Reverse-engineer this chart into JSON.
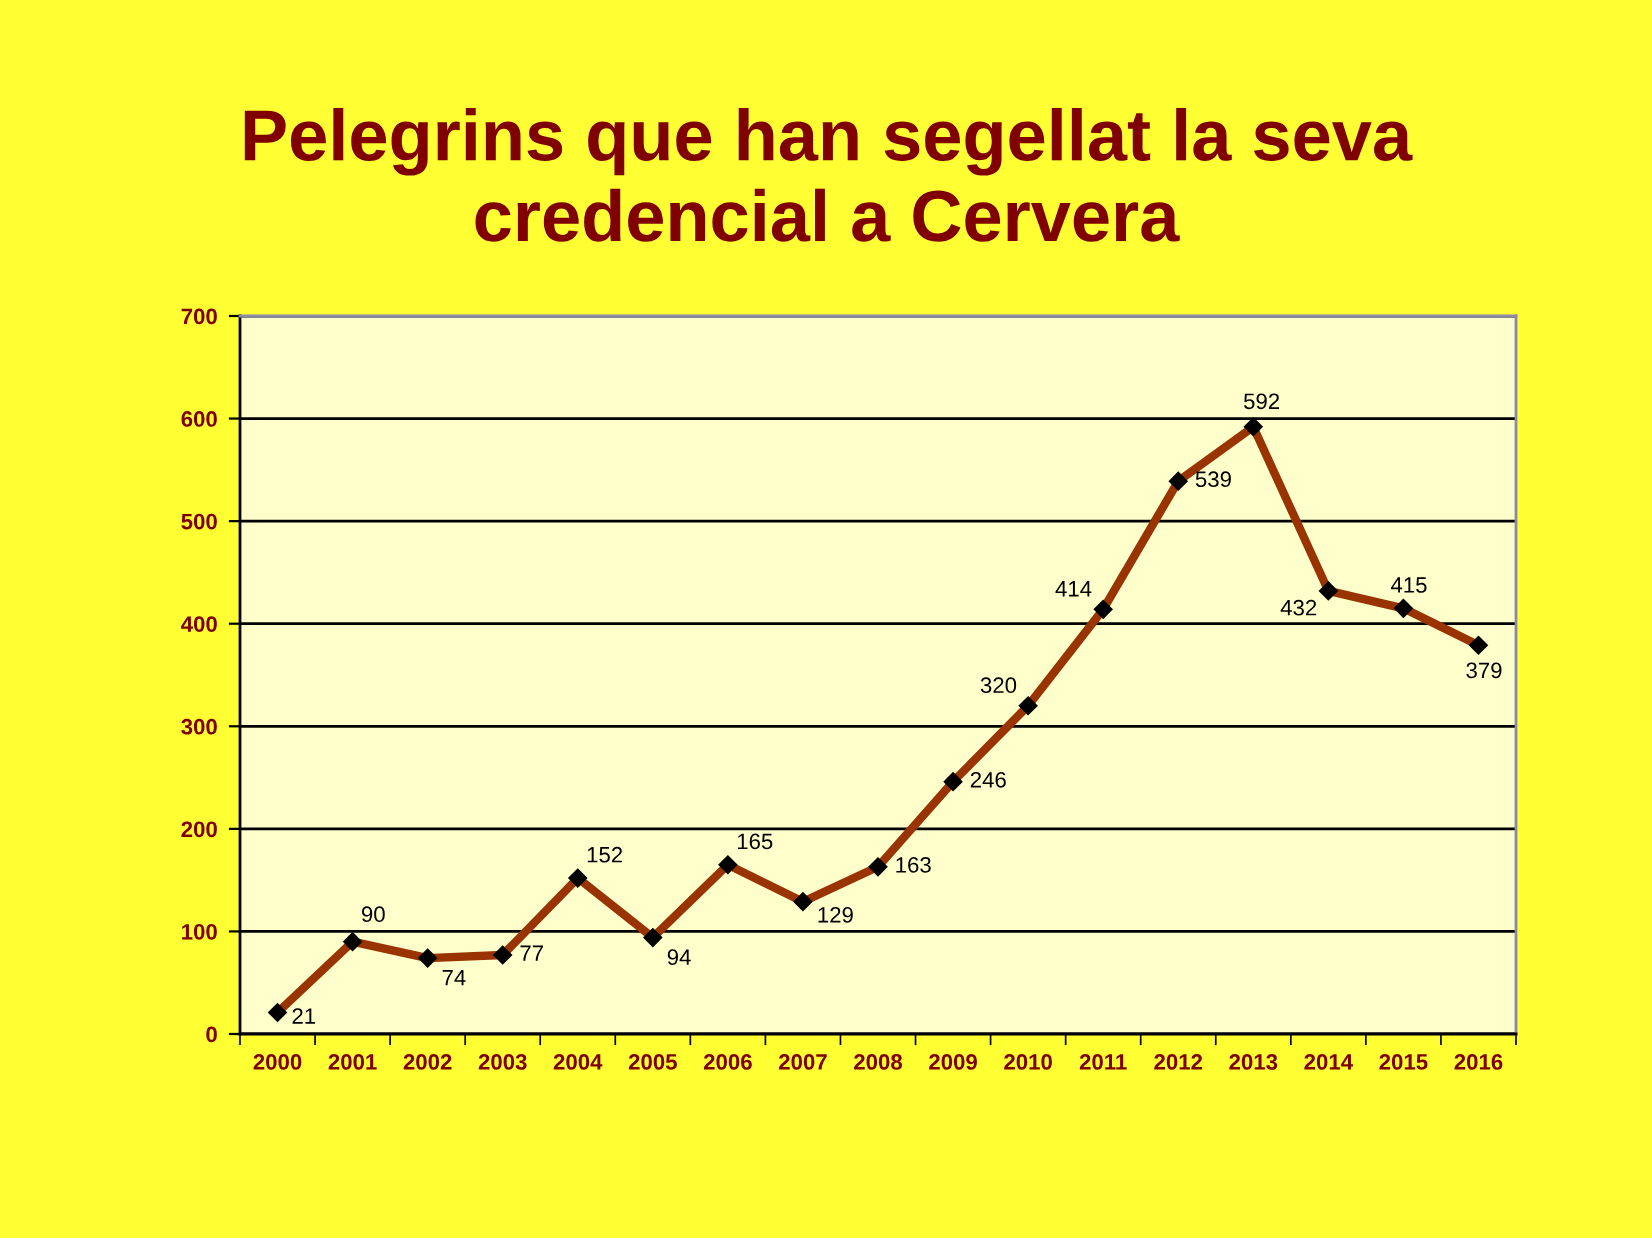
{
  "chart_data": {
    "type": "line",
    "title": "Pelegrins que han segellat la seva credencial a Cervera",
    "categories": [
      "2000",
      "2001",
      "2002",
      "2003",
      "2004",
      "2005",
      "2006",
      "2007",
      "2008",
      "2009",
      "2010",
      "2011",
      "2012",
      "2013",
      "2014",
      "2015",
      "2016"
    ],
    "values": [
      21,
      90,
      74,
      77,
      152,
      94,
      165,
      129,
      163,
      246,
      320,
      414,
      539,
      592,
      432,
      415,
      379
    ],
    "color": "#993300",
    "ylim": [
      0,
      700
    ],
    "yticks": [
      0,
      100,
      200,
      300,
      400,
      500,
      600,
      700
    ],
    "grid": "y",
    "marker": "diamond",
    "line_style": "solid",
    "data_labels": true
  }
}
